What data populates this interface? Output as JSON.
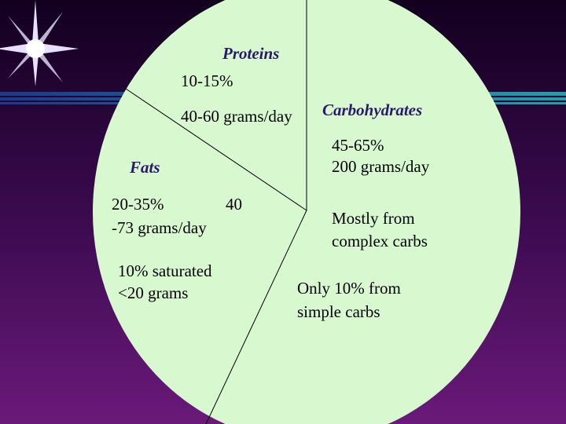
{
  "proteins": {
    "title": "Proteins",
    "lines": [
      "10-15%",
      "40-60 grams/day"
    ]
  },
  "carbohydrates": {
    "title": "Carbohydrates",
    "lines": [
      "45-65%",
      "200 grams/day"
    ],
    "notes": [
      [
        "Mostly from",
        "complex carbs"
      ],
      [
        "Only 10% from",
        "simple carbs"
      ]
    ]
  },
  "fats": {
    "title": "Fats",
    "lines": [
      "20-35%",
      "40",
      "-73 grams/day"
    ],
    "notes": [
      "10% saturated",
      "<20 grams"
    ]
  }
}
